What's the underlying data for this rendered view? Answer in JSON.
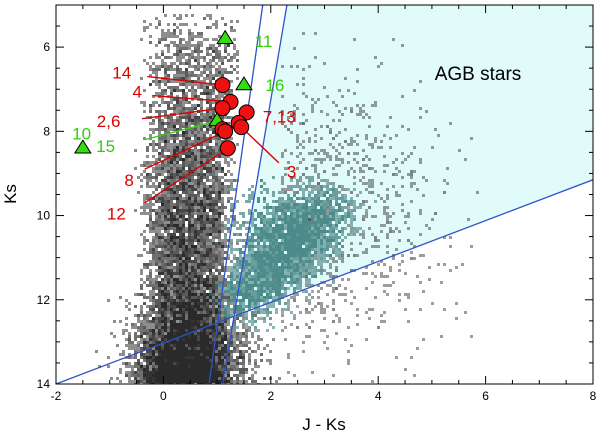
{
  "chart_data": {
    "type": "scatter",
    "title": "",
    "xlabel": "J - Ks",
    "ylabel": "Ks",
    "xlim": [
      -2,
      8
    ],
    "ylim": [
      14,
      5
    ],
    "y_inverted": true,
    "grid": false,
    "x_ticks": [
      "-2",
      "0",
      "2",
      "4",
      "6",
      "8"
    ],
    "y_ticks": [
      "6",
      "8",
      "10",
      "12",
      "14"
    ],
    "region_label": "AGB stars",
    "colors": {
      "line": "#2f52c8",
      "region_fill": "#e1fafa",
      "red": "#ee1111",
      "green": "#33dd11",
      "label_red": "#dd0000",
      "label_green": "#33cc11",
      "field": "#2a2a2a",
      "field_teal": "#4d8a8a"
    },
    "boundary_lines": [
      {
        "x1": -2.0,
        "y1": 14.0,
        "x2": 8.0,
        "y2": 9.15
      },
      {
        "x1": 0.85,
        "y1": 14.0,
        "x2": 1.85,
        "y2": 5.0
      },
      {
        "x1": 1.1,
        "y1": 14.0,
        "x2": 2.3,
        "y2": 5.0
      }
    ],
    "points": [
      {
        "id": "11",
        "x": 1.15,
        "y": 5.8,
        "marker": "triangle",
        "group": "green",
        "label": "11",
        "lx": 1.7,
        "ly": 5.85
      },
      {
        "id": "16",
        "x": 1.5,
        "y": 6.9,
        "marker": "triangle",
        "group": "green",
        "label": "16",
        "lx": 1.9,
        "ly": 6.9
      },
      {
        "id": "14",
        "x": 1.1,
        "y": 6.9,
        "marker": "circle",
        "group": "red",
        "label": "14",
        "lx": -0.6,
        "ly": 6.6,
        "ax": -0.3,
        "ay": 6.7
      },
      {
        "id": "4",
        "x": 1.25,
        "y": 7.3,
        "marker": "circle",
        "group": "red",
        "label": "4",
        "lx": -0.4,
        "ly": 7.05,
        "ax": -0.2,
        "ay": 7.15
      },
      {
        "id": "2,6",
        "x": 1.1,
        "y": 7.45,
        "marker": "circle",
        "group": "red",
        "label": "2,6",
        "lx": -0.8,
        "ly": 7.75,
        "ax": -0.4,
        "ay": 7.7
      },
      {
        "id": "7,13",
        "x": 1.55,
        "y": 7.55,
        "marker": "circle",
        "group": "red",
        "label": "7,13",
        "lx": 1.85,
        "ly": 7.65
      },
      {
        "id": "15",
        "x": 1.0,
        "y": 7.75,
        "marker": "triangle",
        "group": "green",
        "label": "15",
        "lx": -0.9,
        "ly": 8.35,
        "ax": -0.35,
        "ay": 8.2
      },
      {
        "id": "x1",
        "x": 1.4,
        "y": 7.8,
        "marker": "circle",
        "group": "red",
        "label": ""
      },
      {
        "id": "x2",
        "x": 1.1,
        "y": 7.95,
        "marker": "circle",
        "group": "red",
        "label": ""
      },
      {
        "id": "3",
        "x": 1.45,
        "y": 7.9,
        "marker": "circle",
        "group": "red",
        "label": "3",
        "lx": 2.3,
        "ly": 8.95,
        "ax": 2.15,
        "ay": 8.75
      },
      {
        "id": "8",
        "x": 1.15,
        "y": 8.0,
        "marker": "circle",
        "group": "red",
        "label": "8",
        "lx": -0.55,
        "ly": 9.15,
        "ax": -0.35,
        "ay": 8.9
      },
      {
        "id": "12",
        "x": 1.2,
        "y": 8.4,
        "marker": "circle",
        "group": "red",
        "label": "12",
        "lx": -0.7,
        "ly": 9.95,
        "ax": -0.35,
        "ay": 9.7
      },
      {
        "id": "10",
        "x": -1.5,
        "y": 8.4,
        "marker": "triangle",
        "group": "green",
        "label": "10",
        "lx": -1.7,
        "ly": 8.05
      }
    ]
  }
}
